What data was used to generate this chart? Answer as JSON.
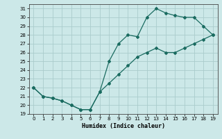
{
  "xlabel": "Humidex (Indice chaleur)",
  "ylabel": "",
  "background_color": "#cce8e8",
  "grid_color": "#aacccc",
  "line_color": "#1a6b60",
  "x_upper": [
    0,
    1,
    2,
    3,
    4,
    5,
    6,
    7,
    8,
    9,
    10,
    11,
    12,
    13,
    14,
    15,
    16,
    17,
    18,
    19
  ],
  "y_upper": [
    22,
    21,
    20.8,
    20.5,
    20,
    19.5,
    19.5,
    21.5,
    25,
    27,
    28,
    27.8,
    30,
    31,
    30.5,
    30.2,
    30,
    30,
    29,
    28
  ],
  "x_lower": [
    0,
    1,
    2,
    3,
    4,
    5,
    6,
    7,
    8,
    9,
    10,
    11,
    12,
    13,
    14,
    15,
    16,
    17,
    18,
    19
  ],
  "y_lower": [
    22,
    21,
    20.8,
    20.5,
    20,
    19.5,
    19.5,
    21.5,
    22.5,
    23.5,
    24.5,
    25.5,
    26,
    26.5,
    26,
    26,
    26.5,
    27,
    27.5,
    28
  ],
  "ylim": [
    19,
    31.5
  ],
  "xlim": [
    -0.5,
    19.5
  ],
  "yticks": [
    19,
    20,
    21,
    22,
    23,
    24,
    25,
    26,
    27,
    28,
    29,
    30,
    31
  ],
  "xticks": [
    0,
    1,
    2,
    3,
    4,
    5,
    6,
    7,
    8,
    9,
    10,
    11,
    12,
    13,
    14,
    15,
    16,
    17,
    18,
    19
  ]
}
